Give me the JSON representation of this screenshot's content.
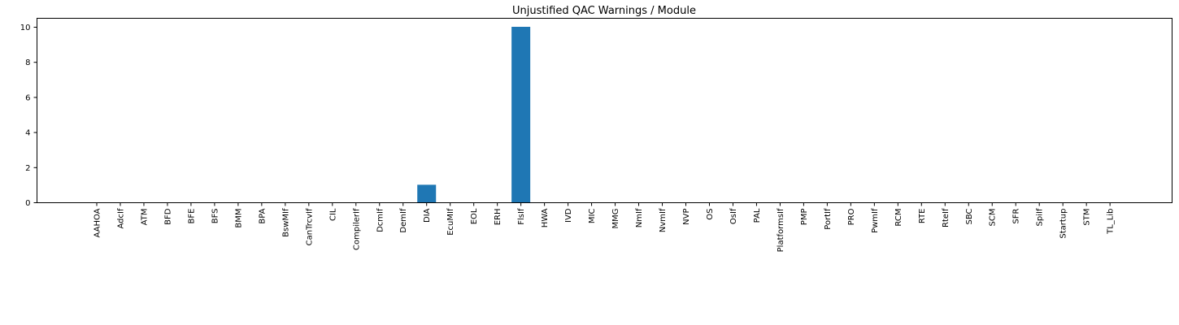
{
  "chart_data": {
    "type": "bar",
    "title": "Unjustified QAC Warnings / Module",
    "xlabel": "",
    "ylabel": "",
    "ylim": [
      0,
      10.5
    ],
    "yticks": [
      0,
      2,
      4,
      6,
      8,
      10
    ],
    "grid": false,
    "legend": "none",
    "bar_color": "#1f77b4",
    "categories": [
      "AAHOA",
      "AdcIf",
      "ATM",
      "BFD",
      "BFE",
      "BFS",
      "BMM",
      "BPA",
      "BswMIf",
      "CanTrcvIf",
      "CIL",
      "CompilerIf",
      "DcmIf",
      "DemIf",
      "DIA",
      "EcuMIf",
      "EOL",
      "ERH",
      "FlsIf",
      "HWA",
      "IVD",
      "MIC",
      "MMG",
      "NmIf",
      "NvmIf",
      "NVP",
      "OS",
      "OsIf",
      "PAL",
      "PlatformsIf",
      "PMP",
      "PortIf",
      "PRO",
      "PwmIf",
      "RCM",
      "RTE",
      "RteIf",
      "SBC",
      "SCM",
      "SFR",
      "SpiIf",
      "Startup",
      "STM",
      "TL_Lib"
    ],
    "values": [
      0,
      0,
      0,
      0,
      0,
      0,
      0,
      0,
      0,
      0,
      0,
      0,
      0,
      0,
      1,
      0,
      0,
      0,
      10,
      0,
      0,
      0,
      0,
      0,
      0,
      0,
      0,
      0,
      0,
      0,
      0,
      0,
      0,
      0,
      0,
      0,
      0,
      0,
      0,
      0,
      0,
      0,
      0,
      0
    ]
  }
}
